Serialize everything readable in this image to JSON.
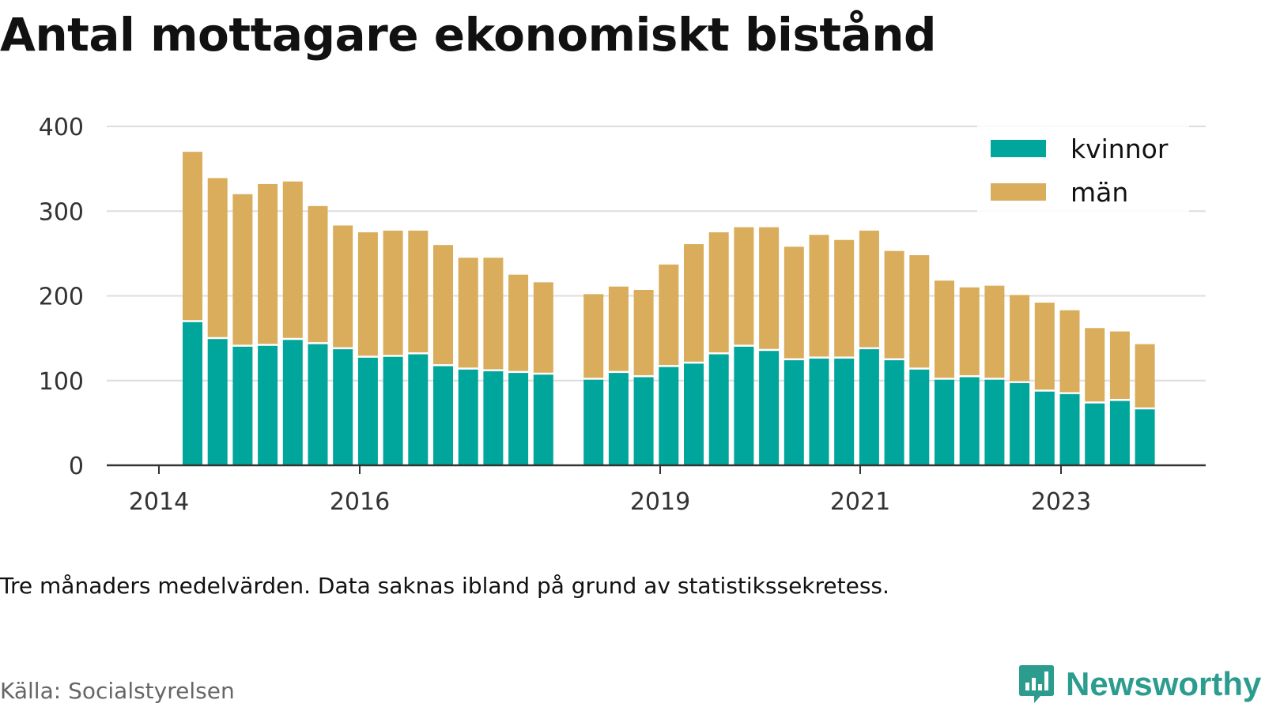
{
  "title": "Antal mottagare ekonomiskt bistånd",
  "note": "Tre månaders medelvärden. Data saknas ibland på grund av statistikssekretess.",
  "source": "Källa: Socialstyrelsen",
  "brand": "Newsworthy",
  "colors": {
    "kvinnor": "#00a59b",
    "man": "#d9ad5b",
    "grid": "#dddddd",
    "axis": "#333333",
    "brand": "#2b9c8e"
  },
  "chart_data": {
    "type": "bar",
    "stacked": true,
    "title": "Antal mottagare ekonomiskt bistånd",
    "x_ticks": [
      "2014",
      "2016",
      "2019",
      "2021",
      "2023"
    ],
    "y_ticks": [
      0,
      100,
      200,
      300,
      400
    ],
    "ylim": [
      0,
      400
    ],
    "grid": true,
    "legend_position": "top-right",
    "series": [
      {
        "name": "kvinnor",
        "values": [
          169,
          149,
          140,
          141,
          148,
          143,
          137,
          127,
          128,
          131,
          117,
          113,
          111,
          109,
          107,
          101,
          109,
          104,
          116,
          120,
          131,
          140,
          135,
          124,
          126,
          126,
          137,
          124,
          113,
          101,
          104,
          101,
          97,
          87,
          84,
          73,
          76,
          66
        ]
      },
      {
        "name": "män",
        "values": [
          201,
          190,
          180,
          191,
          187,
          163,
          146,
          148,
          149,
          146,
          143,
          132,
          134,
          116,
          109,
          101,
          102,
          103,
          121,
          141,
          144,
          141,
          146,
          134,
          146,
          140,
          140,
          129,
          135,
          117,
          106,
          111,
          104,
          105,
          99,
          89,
          82,
          77
        ]
      }
    ]
  }
}
